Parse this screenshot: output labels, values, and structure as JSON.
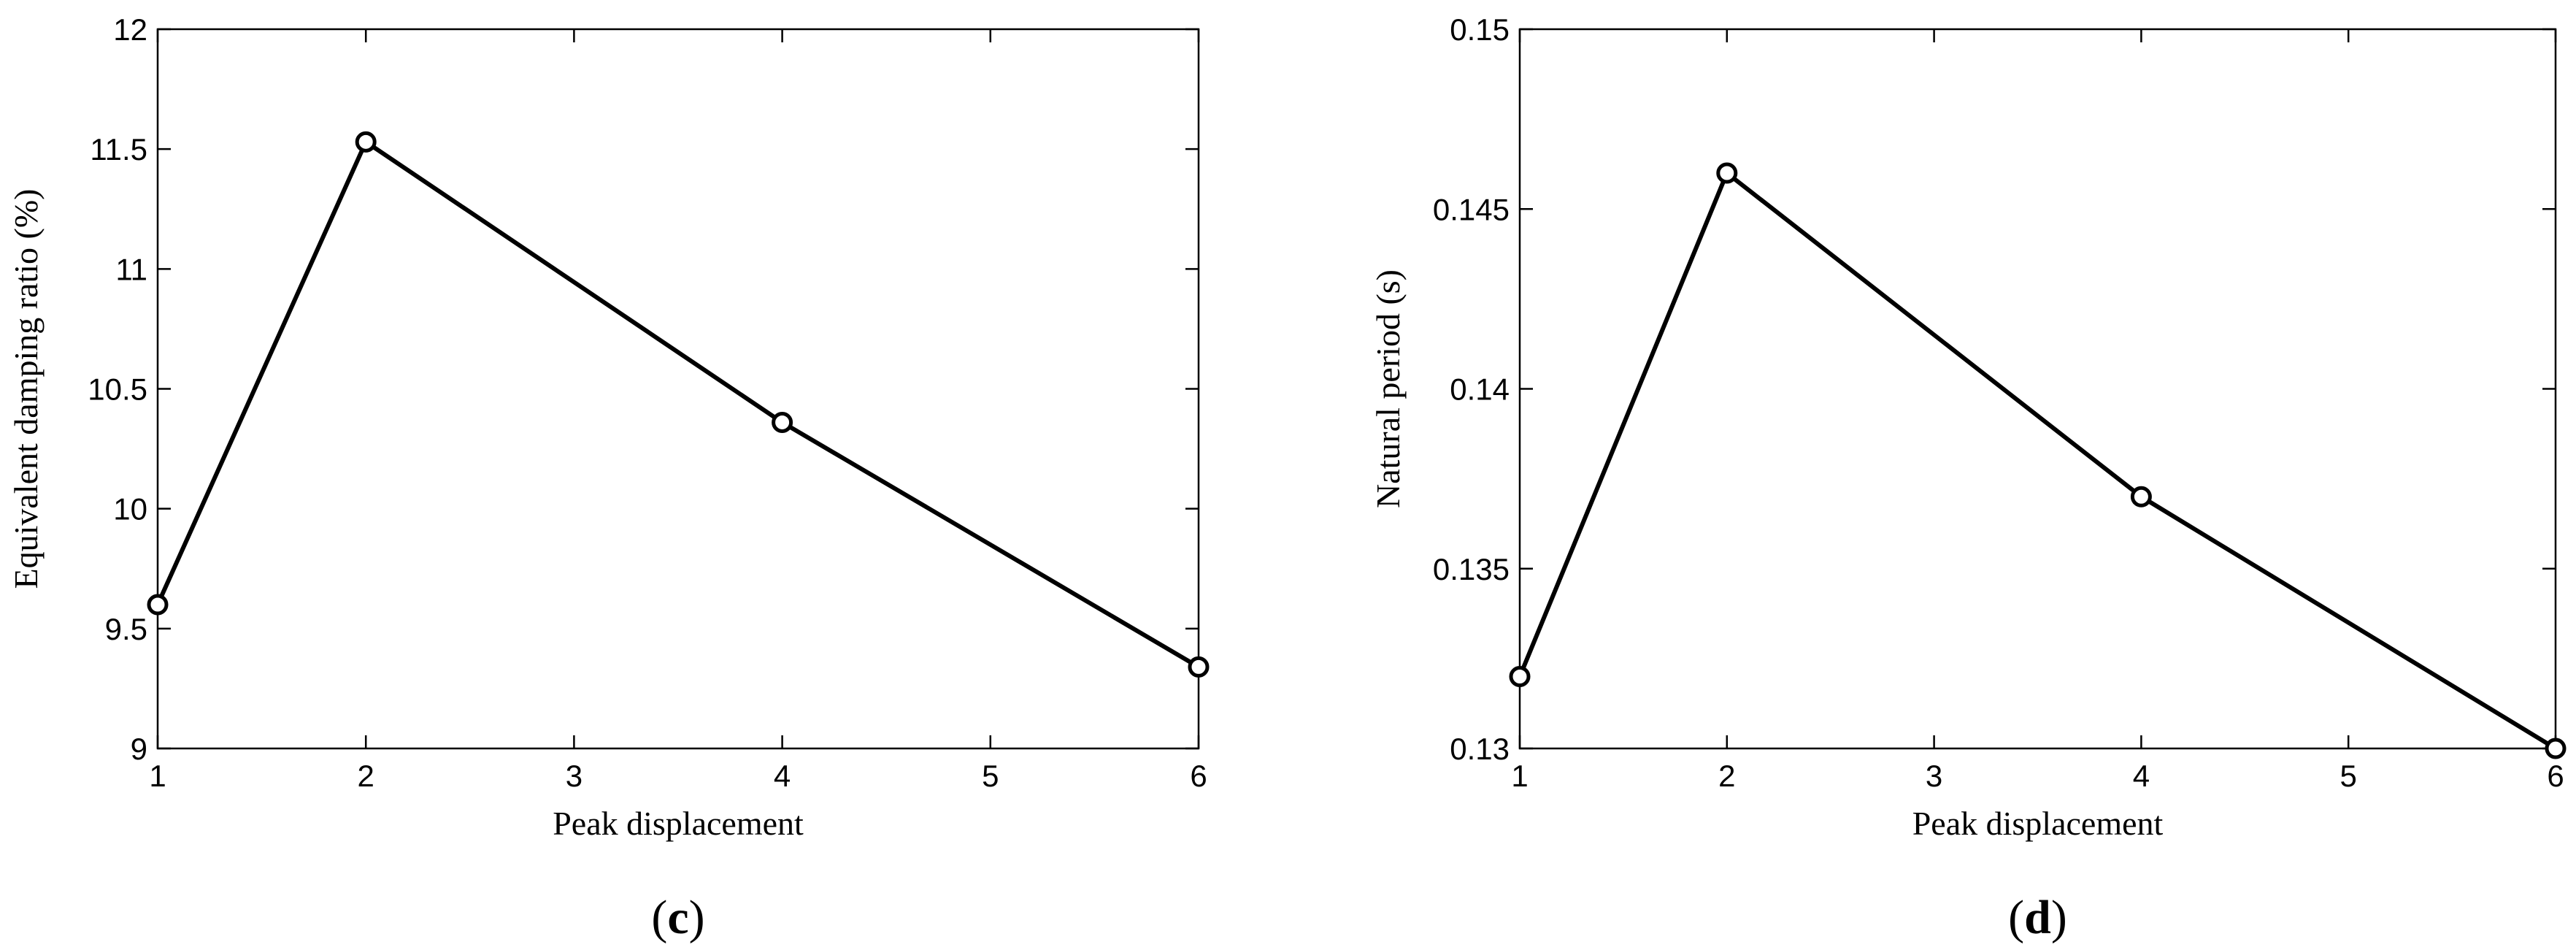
{
  "chart_data": [
    {
      "type": "line",
      "panel_label": "c",
      "xlabel": "Peak displacement",
      "ylabel": "Equivalent damping ratio (%)",
      "xlim": [
        1,
        6
      ],
      "ylim": [
        9,
        12
      ],
      "xticks": [
        1,
        2,
        3,
        4,
        5,
        6
      ],
      "yticks": [
        "9",
        "9.5",
        "10",
        "10.5",
        "11",
        "11.5",
        "12"
      ],
      "ytick_values": [
        9,
        9.5,
        10,
        10.5,
        11,
        11.5,
        12
      ],
      "series": [
        {
          "x": [
            1,
            2,
            4,
            6
          ],
          "y": [
            9.6,
            11.53,
            10.36,
            9.34
          ],
          "color": "#000000",
          "marker": "circle"
        }
      ]
    },
    {
      "type": "line",
      "panel_label": "d",
      "xlabel": "Peak displacement",
      "ylabel": "Natural period (s)",
      "xlim": [
        1,
        6
      ],
      "ylim": [
        0.13,
        0.15
      ],
      "xticks": [
        1,
        2,
        3,
        4,
        5,
        6
      ],
      "yticks": [
        "0.13",
        "0.135",
        "0.14",
        "0.145",
        "0.15"
      ],
      "ytick_values": [
        0.13,
        0.135,
        0.14,
        0.145,
        0.15
      ],
      "series": [
        {
          "x": [
            1,
            2,
            4,
            6
          ],
          "y": [
            0.132,
            0.146,
            0.137,
            0.13
          ],
          "color": "#000000",
          "marker": "circle"
        }
      ]
    }
  ]
}
